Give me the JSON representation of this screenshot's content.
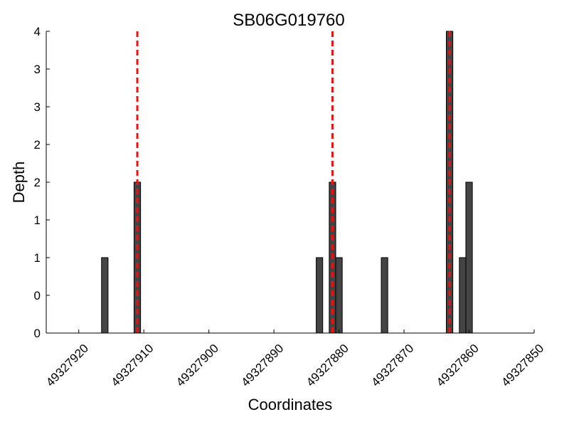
{
  "chart_data": {
    "type": "bar",
    "title": "SB06G019760",
    "xlabel": "Coordinates",
    "ylabel": "Depth",
    "xlim": [
      49327925,
      49327850
    ],
    "x_reversed": true,
    "ylim": [
      0,
      4
    ],
    "x_ticks": [
      49327920,
      49327910,
      49327900,
      49327890,
      49327880,
      49327870,
      49327860,
      49327850
    ],
    "x_tick_labels": [
      "49327920",
      "49327910",
      "49327900",
      "49327890",
      "49327880",
      "49327870",
      "49327860",
      "49327850"
    ],
    "y_ticks": [
      0,
      0.5,
      1,
      1.5,
      2,
      2.5,
      3,
      3.5,
      4
    ],
    "y_tick_labels": [
      "0",
      "0",
      "1",
      "1",
      "2",
      "2",
      "3",
      "3",
      "4"
    ],
    "bar_width": 1,
    "bar_color": "#444444",
    "bars": [
      {
        "x": 49327916,
        "value": 1
      },
      {
        "x": 49327911,
        "value": 2
      },
      {
        "x": 49327883,
        "value": 1
      },
      {
        "x": 49327881,
        "value": 2
      },
      {
        "x": 49327880,
        "value": 1
      },
      {
        "x": 49327873,
        "value": 1
      },
      {
        "x": 49327863,
        "value": 4
      },
      {
        "x": 49327861,
        "value": 1
      },
      {
        "x": 49327860,
        "value": 2
      }
    ],
    "markers": [
      {
        "x": 49327911,
        "style": "dashed",
        "color": "#ee1111"
      },
      {
        "x": 49327881,
        "style": "dashed",
        "color": "#ee1111"
      },
      {
        "x": 49327863,
        "style": "dashed",
        "color": "#ee1111"
      }
    ],
    "grid": false
  }
}
